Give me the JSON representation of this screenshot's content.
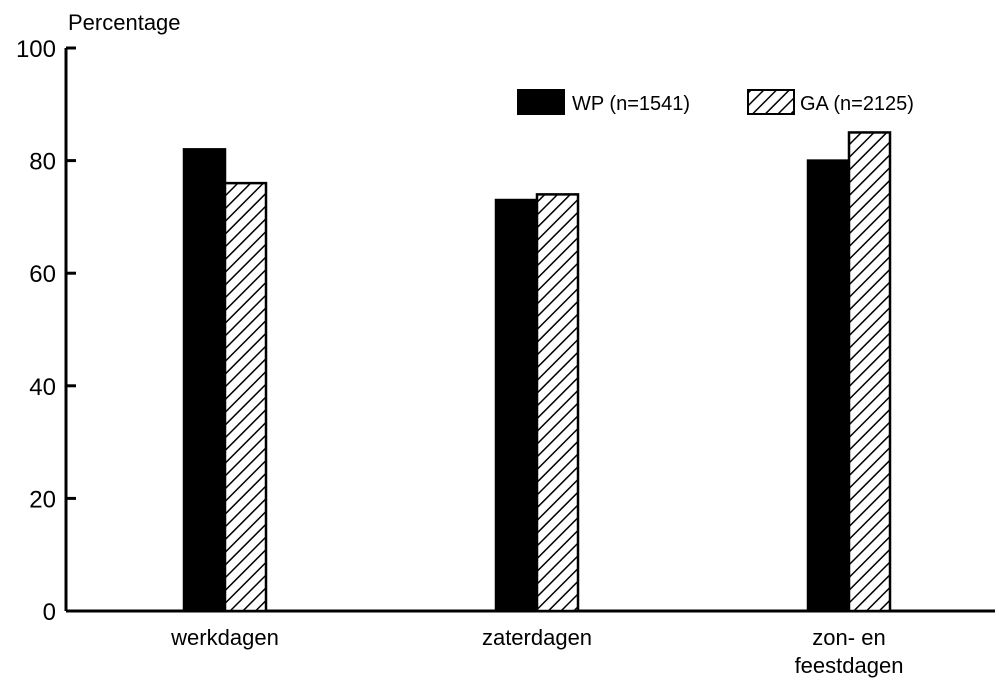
{
  "chart_data": {
    "type": "bar",
    "title": "",
    "ylabel": "Percentage",
    "xlabel": "",
    "ylim": [
      0,
      100
    ],
    "yticks": [
      0,
      20,
      40,
      60,
      80,
      100
    ],
    "categories": [
      "werkdagen",
      "zaterdagen",
      "zon- en\nfeestdagen"
    ],
    "series": [
      {
        "name": "WP (n=1541)",
        "values": [
          82,
          73,
          80
        ],
        "fill": "solid",
        "color": "#000000"
      },
      {
        "name": "GA (n=2125)",
        "values": [
          76,
          74,
          85
        ],
        "fill": "hatched",
        "color": "#000000"
      }
    ],
    "grid": false,
    "legend_position": "top-right"
  }
}
